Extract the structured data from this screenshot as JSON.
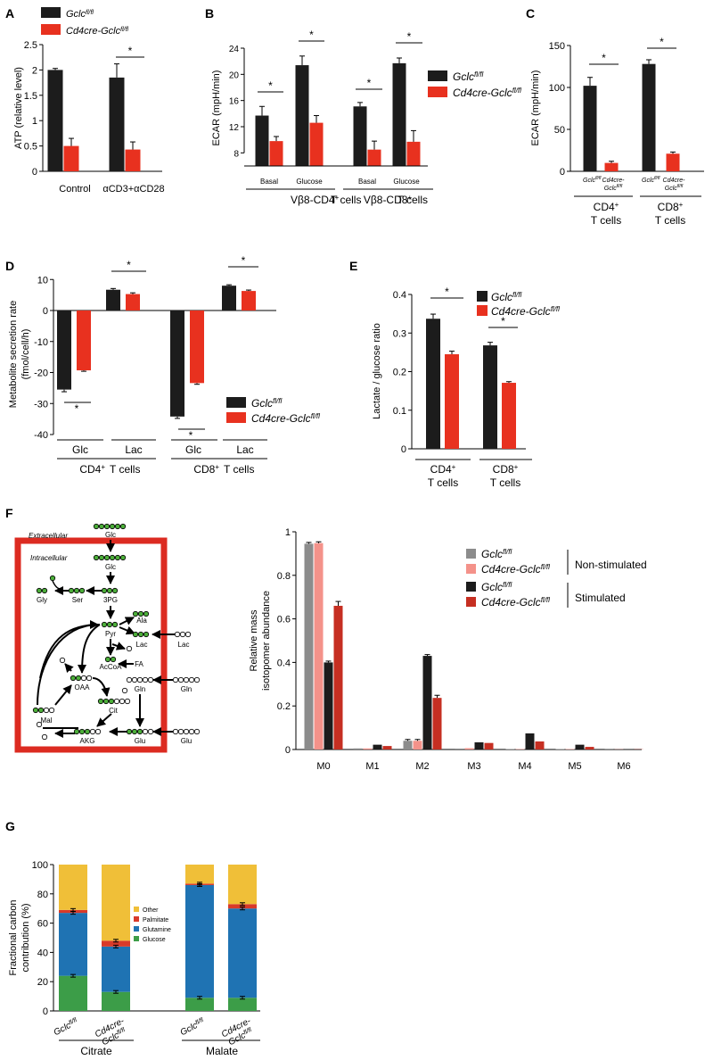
{
  "colors": {
    "black": "#1c1c1c",
    "red": "#e8311f",
    "gray": "#8c8c8c",
    "pink": "#f4928a",
    "dark_red": "#c62f22",
    "yellow": "#f0bf38",
    "blue": "#1f73b3",
    "green": "#3c9d48",
    "palmitate": "#d83a2a",
    "node_green": "#4caf3a",
    "frame_red": "#dc2b21"
  },
  "panel_letters": [
    "A",
    "B",
    "C",
    "D",
    "E",
    "F",
    "G"
  ],
  "legend_std": {
    "ctrl": "Gclc",
    "ctrl_sup": "fl/fl",
    "ko": "Cd4cre-Gclc",
    "ko_sup": "fl/fl"
  },
  "chart_data": [
    {
      "id": "A",
      "type": "bar",
      "ylabel": "ATP (relative level)",
      "ylim": [
        0,
        2.5
      ],
      "yticks": [
        "0",
        "0.5",
        "1",
        "1.5",
        "2",
        "2.5"
      ],
      "categories": [
        "Control",
        "αCD3+αCD28"
      ],
      "series": [
        {
          "name": "Gclc fl/fl",
          "values": [
            2.0,
            1.85
          ],
          "errors": [
            0.03,
            0.27
          ]
        },
        {
          "name": "Cd4cre-Gclc fl/fl",
          "values": [
            0.5,
            0.43
          ],
          "errors": [
            0.15,
            0.15
          ]
        }
      ],
      "annotations": [
        "*"
      ]
    },
    {
      "id": "B",
      "type": "bar",
      "ylabel": "ECAR (mpH/min)",
      "ylim": [
        6,
        24
      ],
      "yticks": [
        "8",
        "12",
        "16",
        "20",
        "24"
      ],
      "categories": [
        "Basal",
        "Glucose",
        "Basal",
        "Glucose"
      ],
      "groups": [
        "Vβ8-CD4⁺ T cells",
        "Vβ8-CD8⁺ T cells"
      ],
      "series": [
        {
          "name": "Gclc fl/fl",
          "values": [
            13.7,
            21.4,
            15.1,
            21.7
          ],
          "errors": [
            1.4,
            1.4,
            0.6,
            0.8
          ]
        },
        {
          "name": "Cd4cre-Gclc fl/fl",
          "values": [
            9.8,
            12.6,
            8.5,
            9.7
          ],
          "errors": [
            0.7,
            1.1,
            1.3,
            1.7
          ]
        }
      ],
      "annotations": [
        "*",
        "*",
        "*",
        "*"
      ]
    },
    {
      "id": "C",
      "type": "bar",
      "ylabel": "ECAR (mpH/min)",
      "ylim": [
        0,
        150
      ],
      "yticks": [
        "0",
        "50",
        "100",
        "150"
      ],
      "categories": [
        "Gclc fl/fl",
        "Cd4cre-Gclc fl/fl",
        "Gclc fl/fl",
        "Cd4cre-Gclc fl/fl"
      ],
      "groups": [
        "CD4⁺ T cells",
        "CD8⁺ T cells"
      ],
      "values": [
        102,
        10,
        128,
        21
      ],
      "errors": [
        10,
        2,
        5,
        2
      ],
      "annotations": [
        "*",
        "*"
      ]
    },
    {
      "id": "D",
      "type": "bar",
      "ylabel": "Metabolite secretion rate (fmol/cell/h)",
      "ylim": [
        -40,
        10
      ],
      "yticks": [
        "-40",
        "-30",
        "-20",
        "-10",
        "0",
        "10"
      ],
      "categories": [
        "Glc",
        "Lac",
        "Glc",
        "Lac"
      ],
      "groups": [
        "CD4⁺ T cells",
        "CD8⁺ T cells"
      ],
      "series": [
        {
          "name": "Gclc fl/fl",
          "values": [
            -25.5,
            6.7,
            -34.2,
            8.0
          ],
          "errors": [
            0.7,
            0.4,
            0.6,
            0.3
          ]
        },
        {
          "name": "Cd4cre-Gclc fl/fl",
          "values": [
            -19.3,
            5.3,
            -23.4,
            6.3
          ],
          "errors": [
            0.3,
            0.4,
            0.4,
            0.3
          ]
        }
      ],
      "annotations": [
        "*",
        "*",
        "*",
        "*"
      ]
    },
    {
      "id": "E",
      "type": "bar",
      "ylabel": "Lactate / glucose ratio",
      "ylim": [
        0,
        0.4
      ],
      "yticks": [
        "0",
        "0.1",
        "0.2",
        "0.3",
        "0.4"
      ],
      "categories": [
        "CD4⁺ T cells",
        "CD8⁺ T cells"
      ],
      "series": [
        {
          "name": "Gclc fl/fl",
          "values": [
            0.337,
            0.268
          ],
          "errors": [
            0.012,
            0.008
          ]
        },
        {
          "name": "Cd4cre-Gclc fl/fl",
          "values": [
            0.245,
            0.171
          ],
          "errors": [
            0.008,
            0.003
          ]
        }
      ],
      "annotations": [
        "*",
        "*"
      ]
    },
    {
      "id": "F",
      "type": "bar",
      "ylabel": "Relative mass isotopomer abundance",
      "ylim": [
        0,
        1
      ],
      "yticks": [
        "0",
        "0.2",
        "0.4",
        "0.6",
        "0.8",
        "1"
      ],
      "categories": [
        "M0",
        "M1",
        "M2",
        "M3",
        "M4",
        "M5",
        "M6"
      ],
      "series": [
        {
          "name": "Gclc fl/fl",
          "condition": "Non-stimulated",
          "values": [
            0.945,
            0.005,
            0.04,
            0.004,
            0.002,
            0.002,
            0.001
          ]
        },
        {
          "name": "Cd4cre-Gclc fl/fl",
          "condition": "Non-stimulated",
          "values": [
            0.948,
            0.005,
            0.04,
            0.006,
            0.002,
            0.002,
            0.001
          ]
        },
        {
          "name": "Gclc fl/fl",
          "condition": "Stimulated",
          "values": [
            0.4,
            0.022,
            0.43,
            0.033,
            0.074,
            0.022,
            0.002
          ]
        },
        {
          "name": "Cd4cre-Gclc fl/fl",
          "condition": "Stimulated",
          "values": [
            0.66,
            0.016,
            0.237,
            0.03,
            0.037,
            0.012,
            0.001
          ]
        }
      ],
      "errors": [
        0.02,
        0,
        0.01,
        0,
        0,
        0,
        0
      ],
      "legend_conditions": [
        "Non-stimulated",
        "Stimulated"
      ]
    },
    {
      "id": "G",
      "type": "bar",
      "ylabel": "Fractional carbon contribution (%)",
      "ylim": [
        0,
        100
      ],
      "yticks": [
        "0",
        "20",
        "40",
        "60",
        "80",
        "100"
      ],
      "categories": [
        "Gclc fl/fl",
        "Cd4cre-Gclc fl/fl",
        "Gclc fl/fl",
        "Cd4cre-Gclc fl/fl"
      ],
      "groups": [
        "Citrate",
        "Malate"
      ],
      "stacked": true,
      "series": [
        {
          "name": "Glucose",
          "values": [
            24,
            13,
            9,
            9
          ]
        },
        {
          "name": "Glutamine",
          "values": [
            43,
            31,
            77,
            61
          ]
        },
        {
          "name": "Palmitate",
          "values": [
            2,
            4,
            1,
            3
          ]
        },
        {
          "name": "Other",
          "values": [
            31,
            52,
            13,
            27
          ]
        }
      ],
      "legend_order": [
        "Other",
        "Palmitate",
        "Glutamine",
        "Glucose"
      ]
    }
  ],
  "pathway": {
    "labels": {
      "extracellular": "Extracellular",
      "intracellular": "Intracellular",
      "glc_out": "Glc",
      "glc_in": "Glc",
      "gly": "Gly",
      "ser": "Ser",
      "pg": "3PG",
      "ala": "Ala",
      "pyr": "Pyr",
      "lac_in": "Lac",
      "lac_out": "Lac",
      "fa": "FA",
      "accoa": "AcCoA",
      "oaa": "OAA",
      "gln_in": "Gln",
      "gln_out": "Gln",
      "mal": "Mal",
      "cit": "Cit",
      "akg": "AKG",
      "glu_in": "Glu",
      "glu_out": "Glu"
    }
  }
}
